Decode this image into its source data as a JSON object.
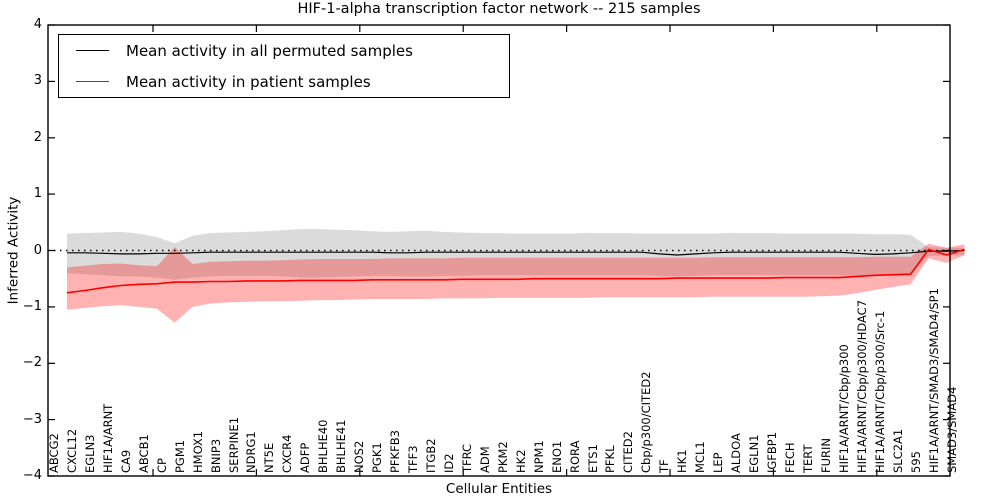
{
  "figure": {
    "title": "HIF-1-alpha transcription factor network -- 215 samples",
    "xlabel": "Cellular Entities",
    "ylabel": "Inferred Activity"
  },
  "legend": {
    "entries": [
      {
        "label": "Mean activity in all permuted samples",
        "color": "#000000"
      },
      {
        "label": "Mean activity in patient samples",
        "color": "#ff0000"
      }
    ],
    "position": "upper left"
  },
  "chart_data": {
    "type": "line",
    "title": "HIF-1-alpha transcription factor network -- 215 samples",
    "xlabel": "Cellular Entities",
    "ylabel": "Inferred Activity",
    "ylim": [
      -4,
      4
    ],
    "yticks": [
      4,
      3,
      2,
      1,
      0,
      -1,
      -2,
      -3,
      -4
    ],
    "yticklabels": [
      "4",
      "3",
      "2",
      "1",
      "0",
      "−1",
      "−2",
      "−3",
      "−4"
    ],
    "grid": false,
    "zero_line": {
      "y": 0,
      "style": "dotted",
      "color": "#000000"
    },
    "legend_position": "upper left",
    "categories": [
      "ABCG2",
      "CXCL12",
      "EGLN3",
      "HIF1A/ARNT",
      "CA9",
      "ABCB1",
      "CP",
      "PGM1",
      "HMOX1",
      "BNIP3",
      "SERPINE1",
      "NDRG1",
      "NT5E",
      "CXCR4",
      "ADFP",
      "BHLHE40",
      "BHLHE41",
      "NOS2",
      "PGK1",
      "PFKFB3",
      "TFF3",
      "ITGB2",
      "ID2",
      "TFRC",
      "ADM",
      "PKM2",
      "HK2",
      "NPM1",
      "ENO1",
      "RORA",
      "ETS1",
      "PFKL",
      "CITED2",
      "Cbp/p300/CITED2",
      "TF",
      "HK1",
      "MCL1",
      "LEP",
      "ALDOA",
      "EGLN1",
      "IGFBP1",
      "FECH",
      "TERT",
      "FURIN",
      "HIF1A/ARNT/Cbp/p300",
      "HIF1A/ARNT/Cbp/p300/HDAC7",
      "HIF1A/ARNT/Cbp/p300/Src-1",
      "SLC2A1",
      "595",
      "HIF1A/ARNT/SMAD3/SMAD4/SP1",
      "SMAD3/SMAD4"
    ],
    "series": [
      {
        "name": "Mean activity in all permuted samples",
        "color": "#000000",
        "line_width": 1.2,
        "values": [
          -0.04,
          -0.04,
          -0.05,
          -0.06,
          -0.06,
          -0.05,
          -0.05,
          -0.04,
          -0.03,
          -0.03,
          -0.03,
          -0.03,
          -0.03,
          -0.03,
          -0.03,
          -0.03,
          -0.03,
          -0.03,
          -0.04,
          -0.04,
          -0.03,
          -0.03,
          -0.03,
          -0.03,
          -0.03,
          -0.03,
          -0.03,
          -0.03,
          -0.03,
          -0.03,
          -0.03,
          -0.03,
          -0.03,
          -0.06,
          -0.08,
          -0.06,
          -0.04,
          -0.03,
          -0.03,
          -0.03,
          -0.03,
          -0.03,
          -0.03,
          -0.03,
          -0.05,
          -0.07,
          -0.06,
          -0.04,
          -0.01,
          -0.01,
          0.0
        ],
        "band": {
          "fill": "#000000",
          "fill_opacity": 0.14,
          "upper": [
            0.3,
            0.31,
            0.32,
            0.33,
            0.3,
            0.24,
            0.13,
            0.26,
            0.31,
            0.32,
            0.33,
            0.34,
            0.36,
            0.38,
            0.38,
            0.37,
            0.36,
            0.34,
            0.33,
            0.34,
            0.35,
            0.33,
            0.32,
            0.31,
            0.31,
            0.3,
            0.3,
            0.3,
            0.3,
            0.31,
            0.31,
            0.31,
            0.3,
            0.3,
            0.3,
            0.3,
            0.3,
            0.31,
            0.31,
            0.31,
            0.3,
            0.3,
            0.3,
            0.3,
            0.3,
            0.29,
            0.29,
            0.28,
            0.06,
            0.05,
            0.05
          ],
          "lower": [
            -0.4,
            -0.42,
            -0.44,
            -0.46,
            -0.46,
            -0.48,
            -0.52,
            -0.48,
            -0.46,
            -0.45,
            -0.45,
            -0.45,
            -0.46,
            -0.48,
            -0.48,
            -0.47,
            -0.46,
            -0.45,
            -0.45,
            -0.46,
            -0.46,
            -0.45,
            -0.45,
            -0.44,
            -0.44,
            -0.44,
            -0.44,
            -0.44,
            -0.44,
            -0.44,
            -0.44,
            -0.44,
            -0.44,
            -0.45,
            -0.46,
            -0.45,
            -0.44,
            -0.44,
            -0.44,
            -0.44,
            -0.44,
            -0.44,
            -0.44,
            -0.44,
            -0.45,
            -0.45,
            -0.45,
            -0.44,
            -0.1,
            -0.09,
            -0.08
          ]
        }
      },
      {
        "name": "Mean activity in patient samples",
        "color": "#ff0000",
        "line_width": 1.6,
        "values": [
          -0.75,
          -0.71,
          -0.66,
          -0.62,
          -0.6,
          -0.59,
          -0.56,
          -0.56,
          -0.55,
          -0.55,
          -0.54,
          -0.54,
          -0.54,
          -0.53,
          -0.53,
          -0.53,
          -0.53,
          -0.52,
          -0.52,
          -0.52,
          -0.52,
          -0.52,
          -0.51,
          -0.51,
          -0.51,
          -0.51,
          -0.5,
          -0.5,
          -0.5,
          -0.5,
          -0.5,
          -0.5,
          -0.5,
          -0.5,
          -0.49,
          -0.49,
          -0.49,
          -0.49,
          -0.49,
          -0.49,
          -0.48,
          -0.48,
          -0.48,
          -0.48,
          -0.46,
          -0.44,
          -0.43,
          -0.42,
          0.02,
          -0.08,
          0.02
        ],
        "band": {
          "fill": "#ff0000",
          "fill_opacity": 0.3,
          "upper": [
            -0.3,
            -0.27,
            -0.24,
            -0.23,
            -0.26,
            -0.28,
            0.06,
            -0.24,
            -0.2,
            -0.19,
            -0.18,
            -0.18,
            -0.17,
            -0.16,
            -0.15,
            -0.15,
            -0.15,
            -0.15,
            -0.14,
            -0.14,
            -0.14,
            -0.14,
            -0.13,
            -0.13,
            -0.13,
            -0.13,
            -0.13,
            -0.13,
            -0.13,
            -0.13,
            -0.13,
            -0.13,
            -0.13,
            -0.13,
            -0.13,
            -0.13,
            -0.12,
            -0.12,
            -0.12,
            -0.12,
            -0.12,
            -0.12,
            -0.12,
            -0.12,
            -0.12,
            -0.11,
            -0.11,
            -0.11,
            0.12,
            0.05,
            0.11
          ],
          "lower": [
            -1.05,
            -1.02,
            -0.99,
            -0.97,
            -1.0,
            -1.03,
            -1.28,
            -1.0,
            -0.94,
            -0.92,
            -0.91,
            -0.9,
            -0.9,
            -0.89,
            -0.88,
            -0.88,
            -0.87,
            -0.86,
            -0.86,
            -0.86,
            -0.86,
            -0.85,
            -0.85,
            -0.85,
            -0.84,
            -0.84,
            -0.84,
            -0.84,
            -0.84,
            -0.84,
            -0.83,
            -0.83,
            -0.83,
            -0.83,
            -0.83,
            -0.83,
            -0.82,
            -0.82,
            -0.82,
            -0.82,
            -0.82,
            -0.82,
            -0.81,
            -0.8,
            -0.76,
            -0.7,
            -0.65,
            -0.6,
            -0.14,
            -0.22,
            -0.08
          ]
        }
      }
    ]
  }
}
